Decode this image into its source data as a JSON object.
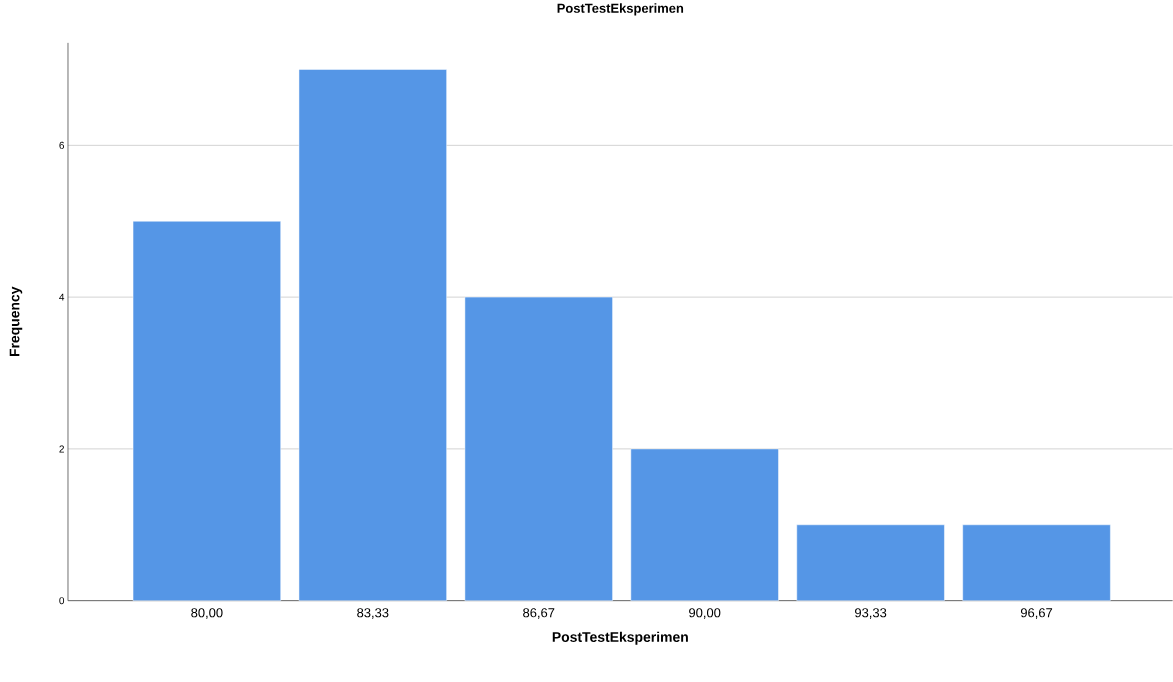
{
  "chart_data": {
    "type": "bar",
    "title": "PostTestEksperimen",
    "xlabel": "PostTestEksperimen",
    "ylabel": "Frequency",
    "categories": [
      "80,00",
      "83,33",
      "86,67",
      "90,00",
      "93,33",
      "96,67"
    ],
    "values": [
      5,
      7,
      4,
      2,
      1,
      1
    ],
    "color": "#5596e6",
    "ylim": [
      0,
      7.35
    ],
    "yticks": [
      0,
      2,
      4,
      6
    ],
    "grid": "y"
  }
}
